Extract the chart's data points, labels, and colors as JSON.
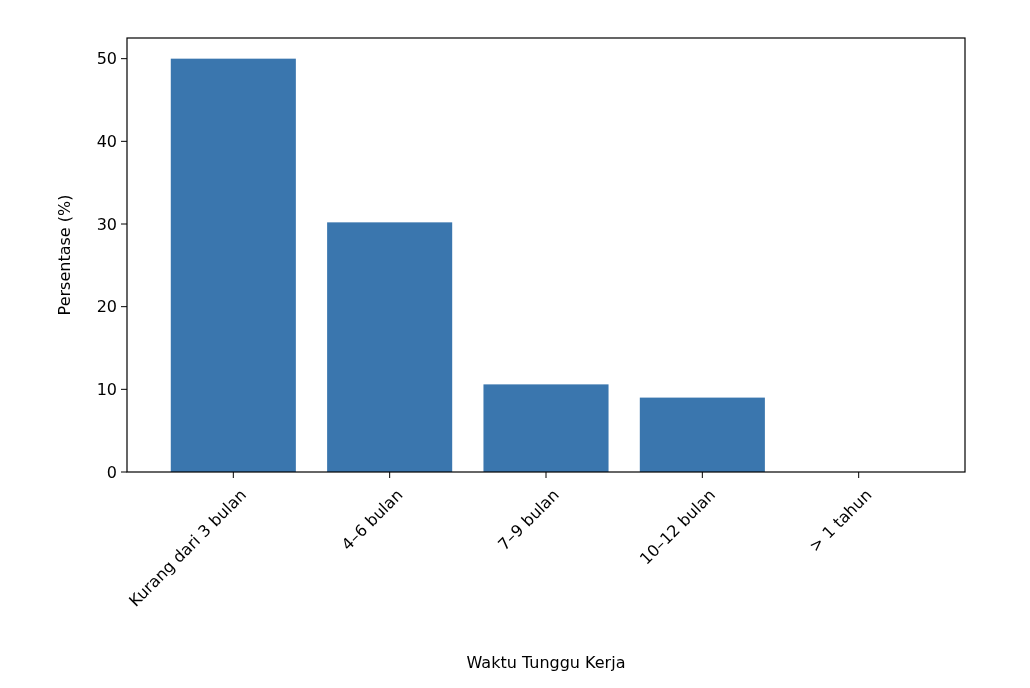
{
  "chart_data": {
    "type": "bar",
    "xlabel": "Waktu Tunggu Kerja",
    "ylabel": "Persentase (%)",
    "categories": [
      "Kurang dari 3 bulan",
      "4–6 bulan",
      "7–9 bulan",
      "10–12 bulan",
      "> 1 tahun"
    ],
    "values": [
      50.0,
      30.2,
      10.6,
      9.0,
      0
    ],
    "color": "#3a76ae",
    "ylim": [
      0,
      52.5
    ],
    "yticks": [
      0,
      10,
      20,
      30,
      40,
      50
    ],
    "grid": false
  }
}
